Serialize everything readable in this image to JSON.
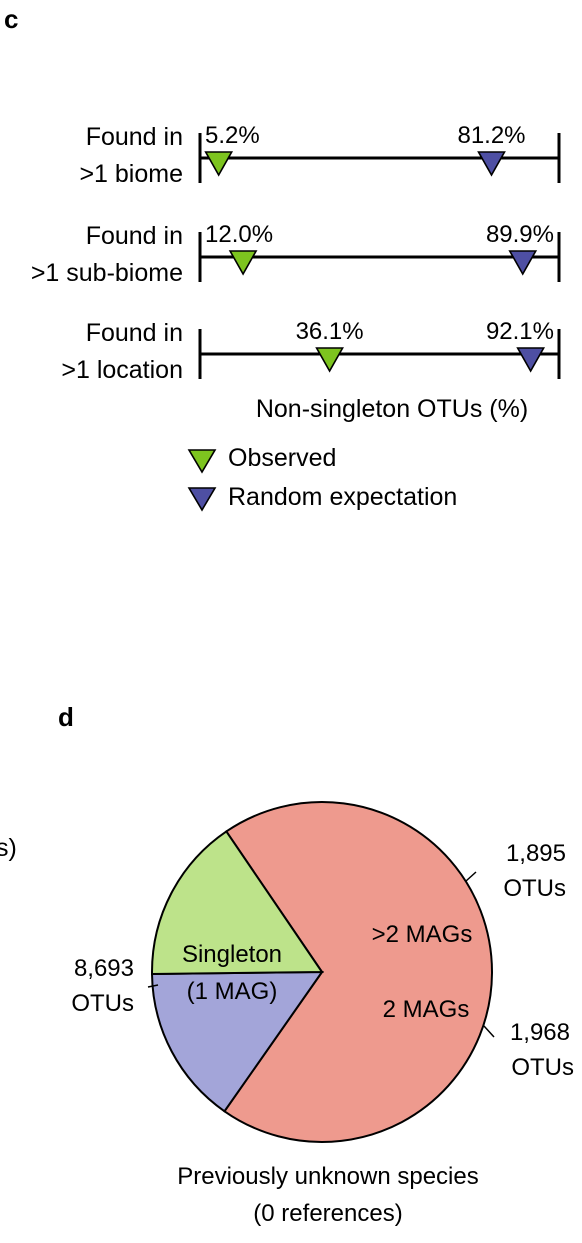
{
  "panel_c": {
    "letter": "c",
    "legend": {
      "observed": {
        "label": "Observed",
        "color": "#7dc41f"
      },
      "random": {
        "label": "Random expectation",
        "color": "#4e4fa3"
      }
    }
  },
  "panel_d": {
    "letter": "d",
    "stray_text": "s)"
  },
  "chart_data": [
    {
      "type": "scatter",
      "xlabel": "Non-singleton OTUs (%)",
      "xlim": [
        0,
        100
      ],
      "rows": [
        {
          "label_line1": "Found in",
          "label_line2": ">1 biome",
          "observed": 5.2,
          "observed_label": "5.2%",
          "random": 81.2,
          "random_label": "81.2%"
        },
        {
          "label_line1": "Found in",
          "label_line2": ">1 sub-biome",
          "observed": 12.0,
          "observed_label": "12.0%",
          "random": 89.9,
          "random_label": "89.9%"
        },
        {
          "label_line1": "Found in",
          "label_line2": ">1 location",
          "observed": 36.1,
          "observed_label": "36.1%",
          "random": 92.1,
          "random_label": "92.1%"
        }
      ]
    },
    {
      "type": "pie",
      "title_line1": "Previously unknown species",
      "title_line2": "(0 references)",
      "slices": [
        {
          "name_line1": "Singleton",
          "name_line2": "(1 MAG)",
          "value": 8693,
          "value_label": "8,693",
          "unit": "OTUs",
          "color": "#ee9a8e"
        },
        {
          "name_line1": ">2 MAGs",
          "name_line2": "",
          "value": 1895,
          "value_label": "1,895",
          "unit": "OTUs",
          "color": "#a3a5d9"
        },
        {
          "name_line1": "2 MAGs",
          "name_line2": "",
          "value": 1968,
          "value_label": "1,968",
          "unit": "OTUs",
          "color": "#bde38a"
        }
      ]
    }
  ]
}
